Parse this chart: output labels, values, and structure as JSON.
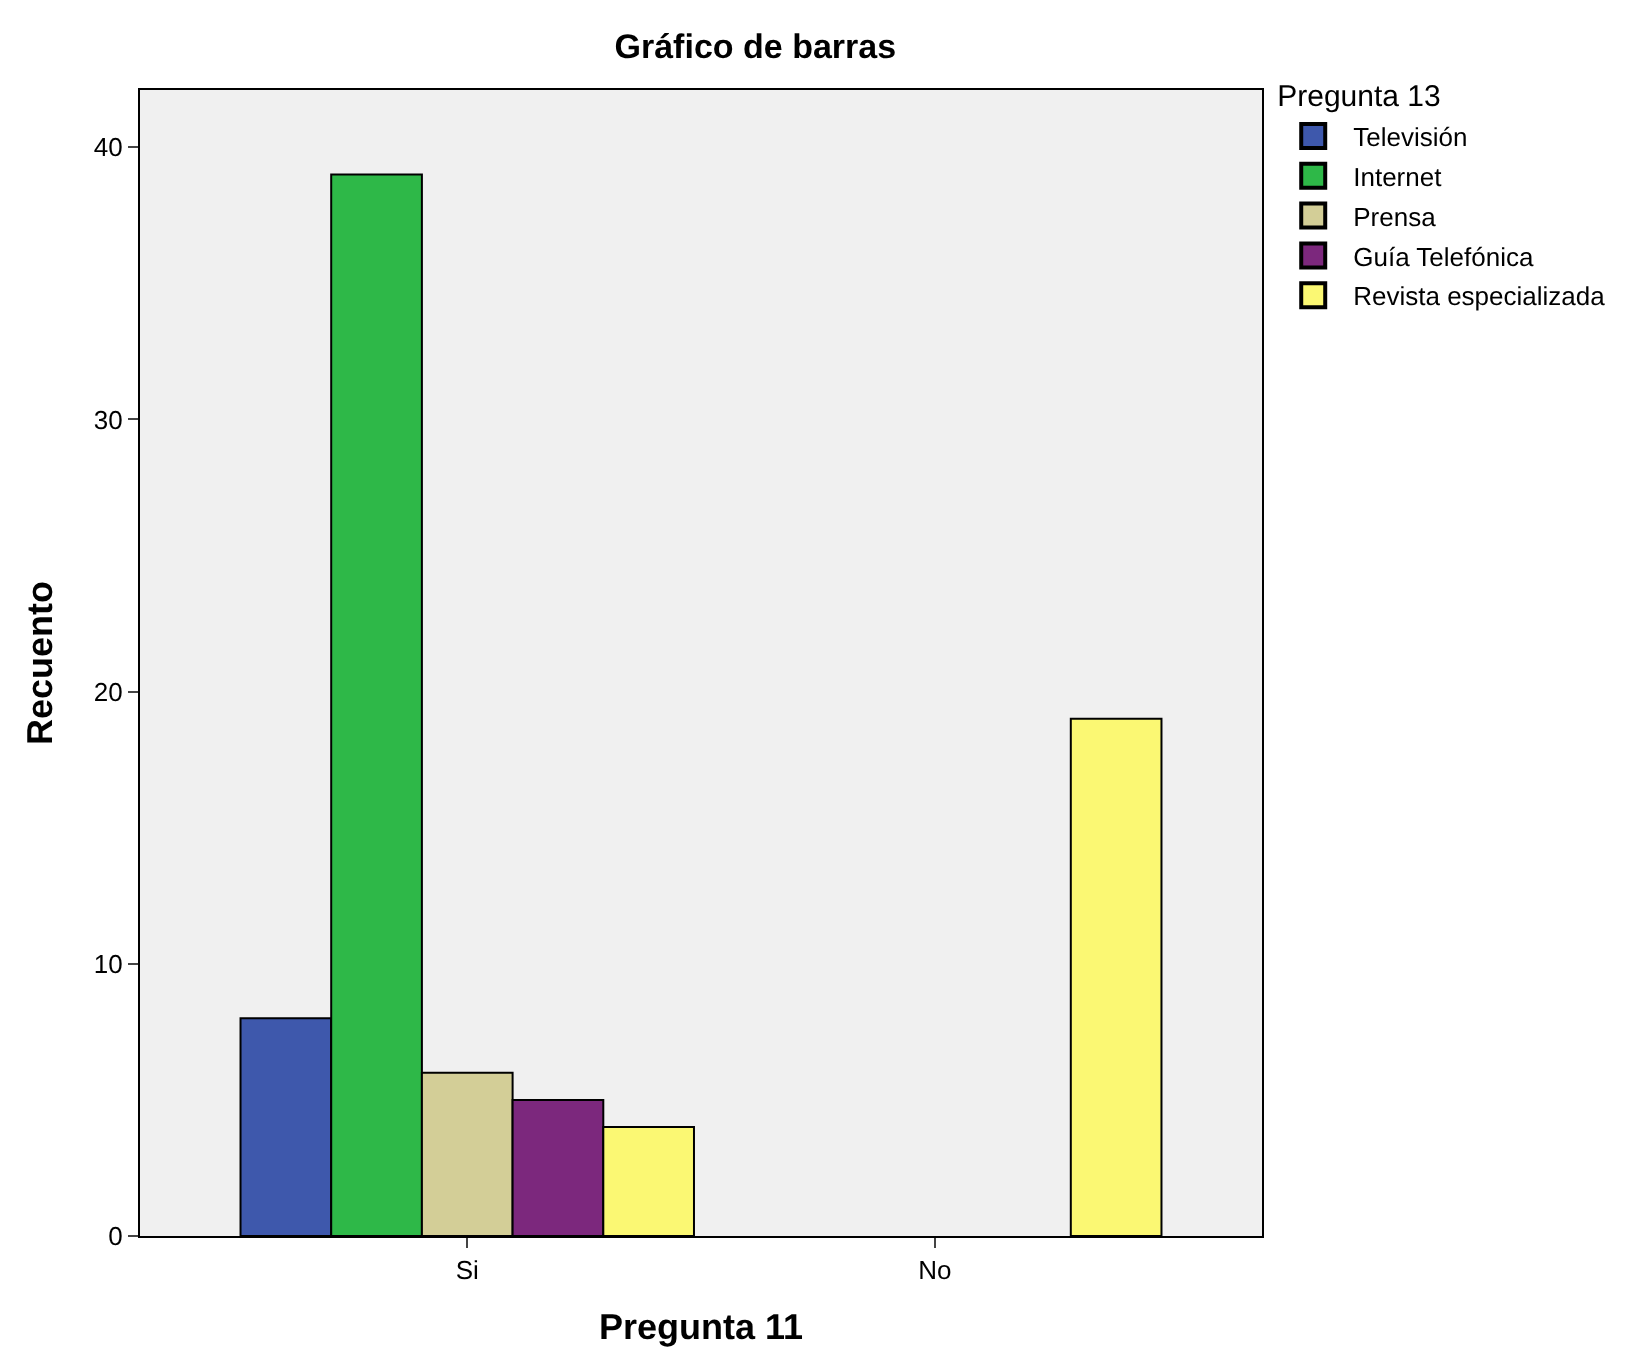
{
  "chart_data": {
    "type": "bar",
    "title": "Gráfico de barras",
    "xlabel": "Pregunta 11",
    "ylabel": "Recuento",
    "legend_title": "Pregunta 13",
    "categories": [
      "Si",
      "No"
    ],
    "series": [
      {
        "name": "Televisión",
        "color": "#3e58ac",
        "values": [
          8,
          null
        ]
      },
      {
        "name": "Internet",
        "color": "#2eb848",
        "values": [
          39,
          null
        ]
      },
      {
        "name": "Prensa",
        "color": "#d3ce97",
        "values": [
          6,
          null
        ]
      },
      {
        "name": "Guía Telefónica",
        "color": "#7c287d",
        "values": [
          5,
          null
        ]
      },
      {
        "name": "Revista especializada",
        "color": "#fbf873",
        "values": [
          4,
          19
        ]
      }
    ],
    "ylim": [
      0,
      42.1
    ],
    "yticks": [
      0,
      10,
      20,
      30,
      40
    ],
    "grid": false,
    "legend": "top right"
  }
}
